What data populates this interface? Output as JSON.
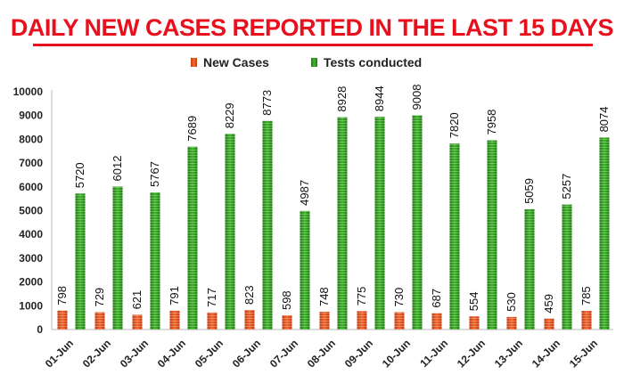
{
  "chart_data": {
    "type": "bar",
    "title": "DAILY NEW CASES REPORTED IN THE LAST 15 DAYS",
    "categories": [
      "01-Jun",
      "02-Jun",
      "03-Jun",
      "04-Jun",
      "05-Jun",
      "06-Jun",
      "07-Jun",
      "08-Jun",
      "09-Jun",
      "10-Jun",
      "11-Jun",
      "12-Jun",
      "13-Jun",
      "14-Jun",
      "15-Jun"
    ],
    "series": [
      {
        "name": "New Cases",
        "color": "#e8501c",
        "values": [
          798,
          729,
          621,
          791,
          717,
          823,
          598,
          748,
          775,
          730,
          687,
          554,
          530,
          459,
          785
        ]
      },
      {
        "name": "Tests conducted",
        "color": "#2f9a1c",
        "values": [
          5720,
          6012,
          5767,
          7689,
          8229,
          8773,
          4987,
          8928,
          8944,
          9008,
          7820,
          7958,
          5059,
          5257,
          8074
        ]
      }
    ],
    "ylim": [
      0,
      10000
    ],
    "yticks": [
      0,
      1000,
      2000,
      3000,
      4000,
      5000,
      6000,
      7000,
      8000,
      9000,
      10000
    ],
    "legend_position": "top-center",
    "grid": false,
    "data_labels": true
  }
}
